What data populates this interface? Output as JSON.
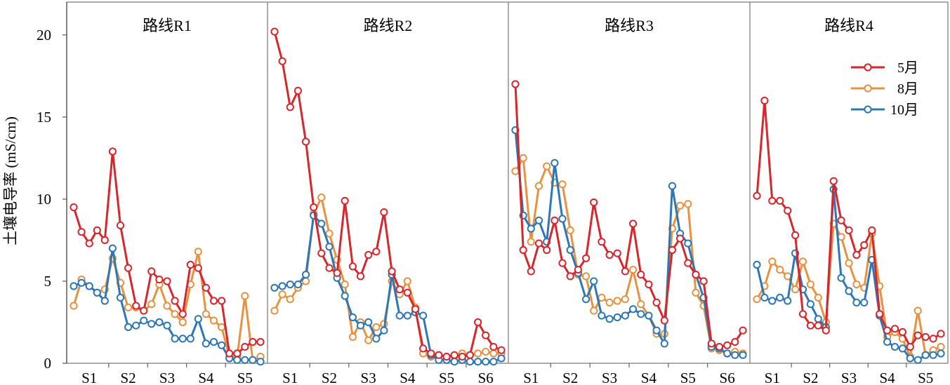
{
  "chart_data": {
    "type": "line",
    "ylabel": "土壤电导率 (mS/cm)",
    "ylim": [
      0,
      22
    ],
    "yticks": [
      "0",
      "5",
      "10",
      "15",
      "20"
    ],
    "legend": {
      "placement": "top-right",
      "entries": [
        "5月",
        "8月",
        "10月"
      ]
    },
    "colors": {
      "may": "#d7262c",
      "aug": "#e8913f",
      "oct": "#2c77b8"
    },
    "panels": [
      {
        "title": "路线R1",
        "xticks": [
          "S1",
          "S2",
          "S3",
          "S4",
          "S5"
        ],
        "series": [
          {
            "name": "5月",
            "values": [
              9.5,
              8.0,
              7.3,
              8.1,
              7.5,
              12.9,
              8.4,
              5.8,
              3.5,
              3.2,
              5.6,
              5.1,
              5.0,
              3.8,
              3.0,
              6.0,
              5.8,
              4.6,
              3.8,
              3.8,
              0.6,
              0.6,
              1.0,
              1.3,
              1.3
            ]
          },
          {
            "name": "8月",
            "values": [
              3.5,
              5.1,
              4.7,
              4.3,
              4.5,
              6.4,
              4.9,
              3.4,
              3.4,
              3.2,
              3.6,
              4.8,
              3.5,
              3.0,
              2.5,
              4.8,
              6.8,
              3.0,
              2.6,
              2.2,
              0.4,
              0.4,
              4.1,
              0.2,
              0.4
            ]
          },
          {
            "name": "10月",
            "values": [
              4.7,
              4.9,
              4.7,
              4.3,
              3.8,
              7.0,
              4.0,
              2.2,
              2.3,
              2.6,
              2.4,
              2.5,
              2.3,
              1.5,
              1.5,
              1.5,
              2.7,
              1.2,
              1.3,
              1.1,
              0.3,
              0.2,
              0.2,
              0.2,
              0.1
            ]
          }
        ]
      },
      {
        "title": "路线R2",
        "xticks": [
          "S1",
          "S2",
          "S3",
          "S4",
          "S5",
          "S6"
        ],
        "series": [
          {
            "name": "5月",
            "values": [
              20.2,
              18.4,
              15.6,
              16.6,
              13.5,
              9.5,
              6.7,
              5.8,
              5.5,
              9.9,
              5.9,
              5.3,
              6.6,
              6.8,
              9.2,
              5.6,
              4.5,
              4.3,
              3.3,
              0.9,
              0.6,
              0.5,
              0.4,
              0.5,
              0.4,
              0.5,
              2.5,
              1.7,
              1.0,
              0.8
            ]
          },
          {
            "name": "8月",
            "values": [
              3.2,
              4.2,
              3.9,
              4.6,
              5.0,
              9.1,
              10.1,
              7.9,
              6.3,
              4.8,
              1.6,
              2.5,
              1.4,
              2.2,
              2.4,
              5.0,
              4.2,
              5.0,
              3.4,
              0.6,
              0.4,
              0.5,
              0.4,
              0.4,
              0.6,
              0.5,
              0.6,
              0.7,
              0.6,
              0.6
            ]
          },
          {
            "name": "10月",
            "values": [
              4.6,
              4.7,
              4.8,
              4.8,
              5.4,
              9.0,
              8.5,
              7.1,
              5.2,
              4.1,
              2.8,
              2.3,
              2.5,
              1.5,
              2.0,
              5.4,
              2.9,
              2.9,
              3.1,
              2.9,
              0.5,
              0.2,
              0.2,
              0.1,
              0.2,
              0.1,
              0.1,
              0.1,
              0.1,
              0.3
            ]
          }
        ]
      },
      {
        "title": "路线R3",
        "xticks": [
          "S1",
          "S2",
          "S3",
          "S4",
          "S5",
          "S6"
        ],
        "series": [
          {
            "name": "5月",
            "values": [
              17.0,
              6.9,
              5.6,
              7.3,
              6.9,
              8.7,
              6.1,
              5.3,
              5.7,
              6.4,
              9.8,
              7.4,
              6.6,
              6.7,
              5.6,
              8.5,
              5.4,
              4.8,
              3.7,
              2.6,
              6.9,
              7.6,
              6.1,
              5.4,
              5.0,
              1.2,
              1.0,
              1.1,
              1.3,
              2.0
            ]
          },
          {
            "name": "8月",
            "values": [
              11.7,
              12.5,
              7.4,
              10.8,
              12.0,
              11.0,
              10.9,
              8.1,
              5.4,
              5.3,
              3.2,
              4.0,
              3.7,
              3.8,
              3.9,
              5.7,
              3.6,
              2.9,
              1.8,
              1.8,
              8.2,
              9.6,
              9.7,
              4.3,
              3.5,
              0.9,
              0.8,
              0.6,
              0.7,
              0.6
            ]
          },
          {
            "name": "10月",
            "values": [
              14.2,
              9.0,
              8.2,
              8.7,
              7.4,
              12.2,
              8.8,
              6.9,
              5.5,
              3.9,
              5.0,
              2.9,
              2.7,
              2.8,
              2.9,
              3.3,
              3.0,
              2.9,
              2.0,
              1.2,
              10.8,
              7.9,
              7.3,
              5.4,
              4.0,
              1.0,
              0.9,
              0.6,
              0.5,
              0.5
            ]
          }
        ]
      },
      {
        "title": "路线R4",
        "xticks": [
          "S1",
          "S2",
          "S3",
          "S4",
          "S5"
        ],
        "series": [
          {
            "name": "5月",
            "values": [
              10.2,
              16.0,
              9.9,
              9.9,
              9.3,
              7.8,
              3.0,
              2.3,
              2.3,
              2.0,
              11.1,
              8.7,
              8.1,
              6.6,
              7.2,
              8.1,
              3.0,
              2.0,
              2.1,
              1.9,
              1.0,
              1.7,
              1.6,
              1.5,
              1.8
            ]
          },
          {
            "name": "8月",
            "values": [
              3.9,
              4.7,
              6.2,
              5.7,
              5.3,
              4.5,
              6.2,
              4.8,
              4.0,
              2.5,
              8.5,
              7.7,
              6.1,
              4.8,
              4.6,
              7.9,
              4.7,
              1.6,
              1.9,
              1.5,
              0.4,
              3.2,
              0.5,
              0.8,
              1.0
            ]
          },
          {
            "name": "10月",
            "values": [
              6.0,
              4.0,
              3.8,
              4.0,
              3.8,
              6.7,
              4.5,
              3.6,
              2.7,
              2.2,
              10.6,
              5.2,
              4.4,
              3.7,
              3.7,
              6.3,
              2.9,
              1.3,
              1.0,
              0.9,
              0.3,
              0.2,
              0.5,
              0.5,
              0.6
            ]
          }
        ]
      }
    ]
  }
}
